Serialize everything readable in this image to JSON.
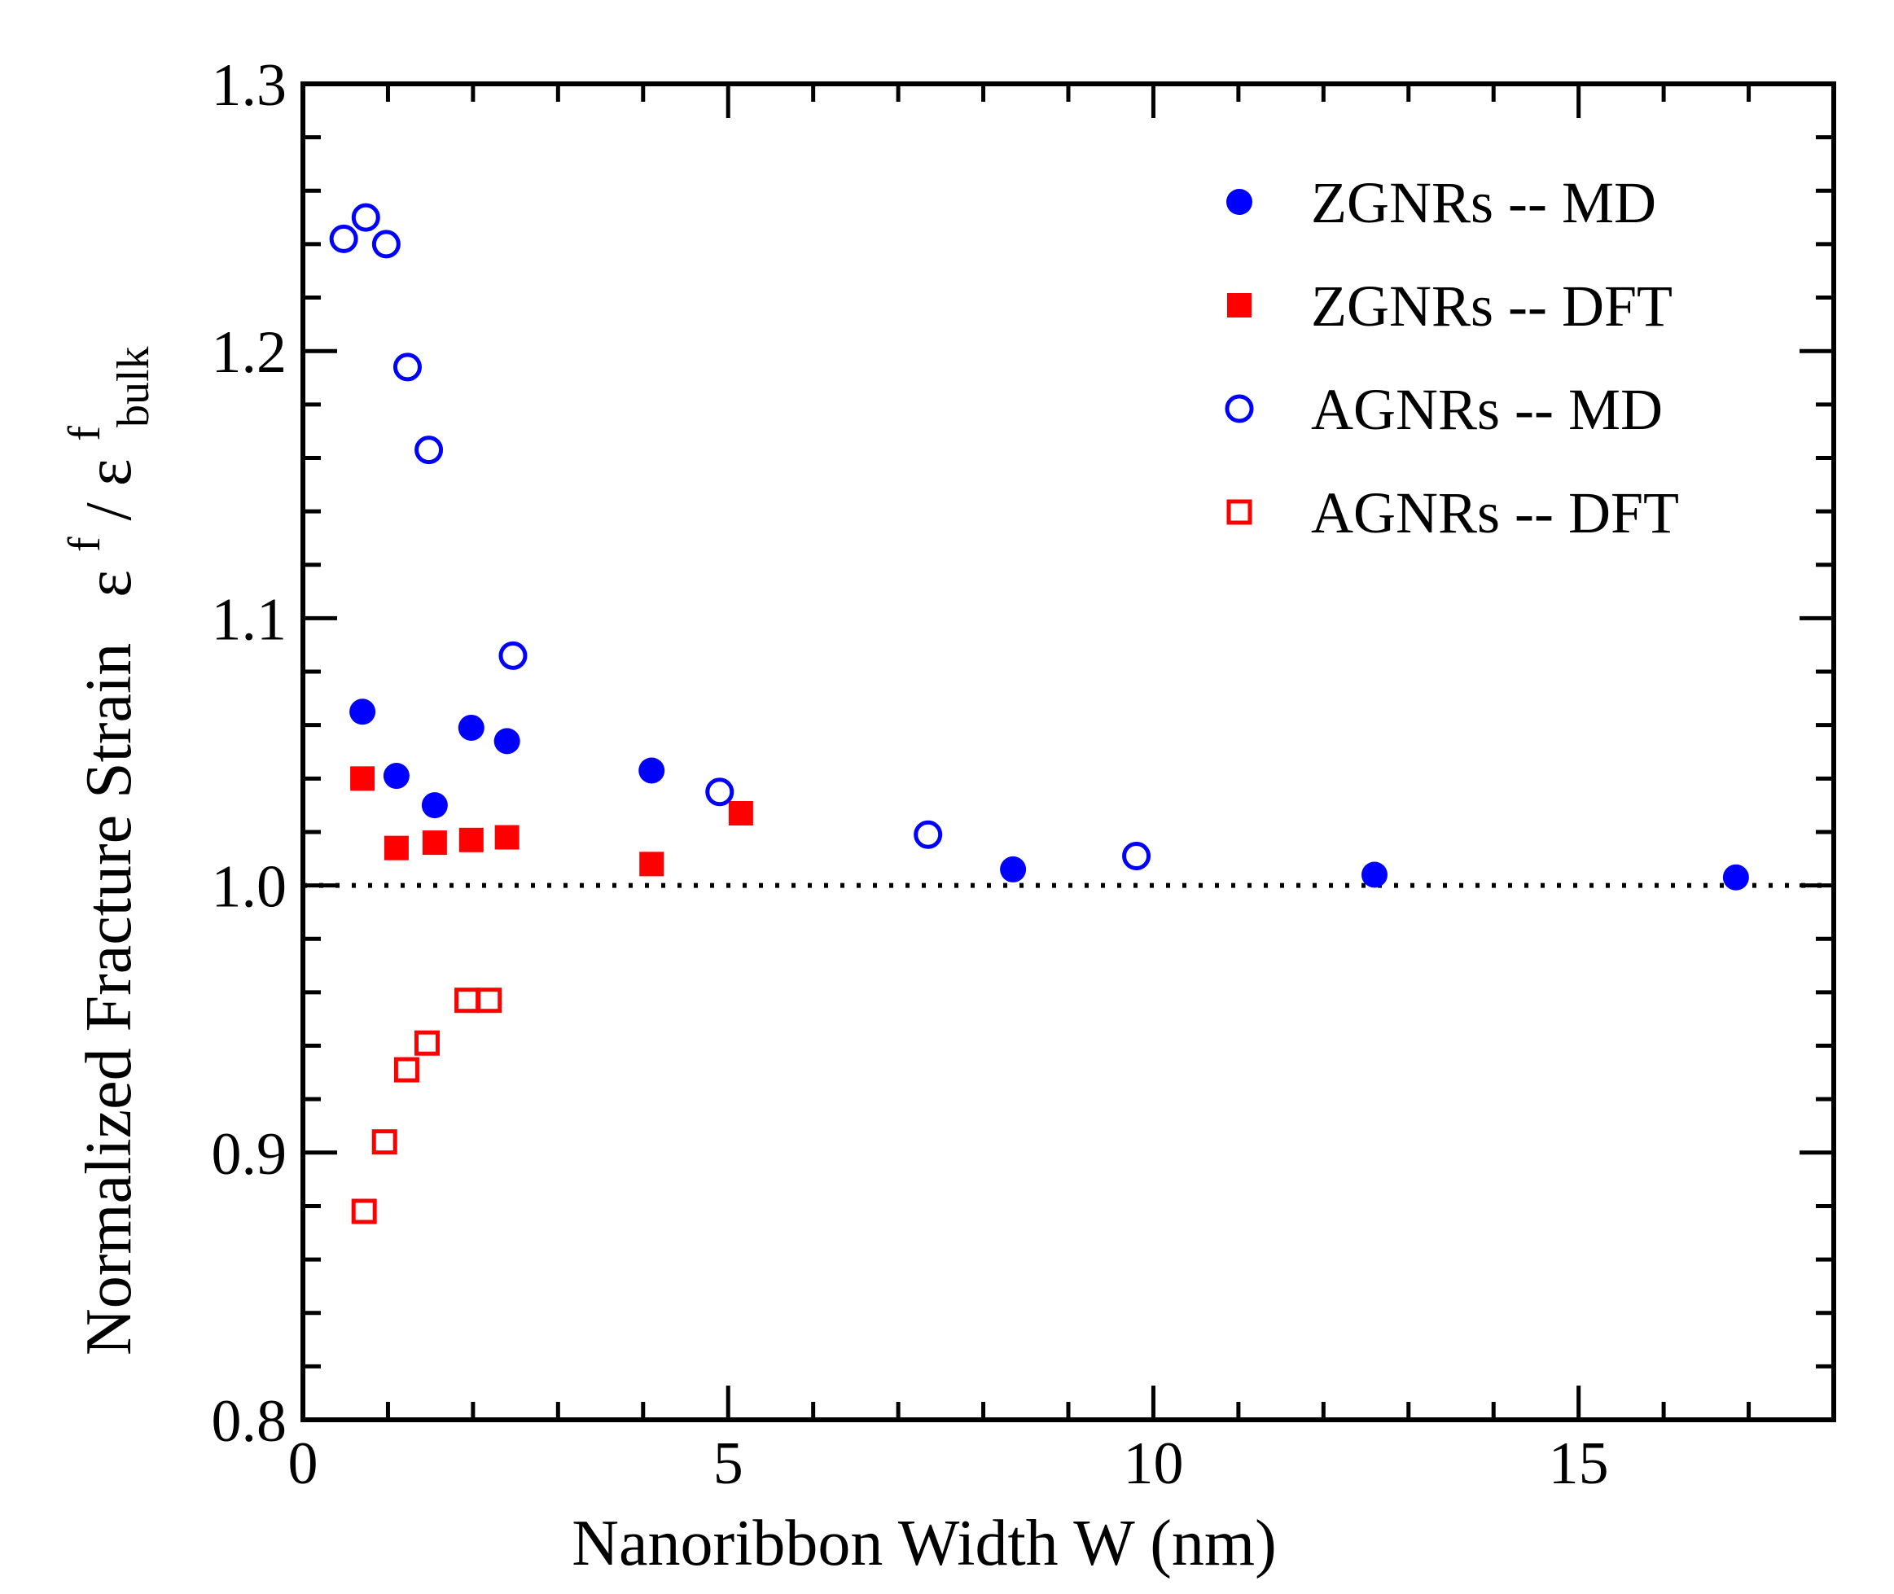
{
  "chart_data": {
    "type": "scatter",
    "title": "",
    "xlabel": "Nanoribbon Width  W (nm)",
    "ylabel": {
      "main": "Normalized Fracture Strain",
      "epsilon": "ε",
      "sup": "f",
      "slash": " / ",
      "epsilon_bulk": "ε",
      "sup_bulk": "f",
      "sub_bulk": "bulk"
    },
    "xlim": [
      0,
      18
    ],
    "ylim": [
      0.8,
      1.3
    ],
    "x_ticks": [
      0,
      5,
      10,
      15
    ],
    "x_tick_labels": [
      "0",
      "5",
      "10",
      "15"
    ],
    "y_ticks": [
      0.8,
      0.9,
      1.0,
      1.1,
      1.2,
      1.3
    ],
    "y_tick_labels": [
      "0.8",
      "0.9",
      "1.0",
      "1.1",
      "1.2",
      "1.3"
    ],
    "x_minor_step": 1,
    "y_minor_step": 0.02,
    "reference_line": {
      "y": 1.0,
      "style": "dotted"
    },
    "legend_position": "top-right",
    "series": [
      {
        "name": "ZGNRs -- MD",
        "marker": "circle-filled",
        "color": "#0000ff",
        "x": [
          0.7,
          1.1,
          1.55,
          1.98,
          2.4,
          4.1,
          8.35,
          12.6,
          16.85
        ],
        "y": [
          1.065,
          1.041,
          1.03,
          1.059,
          1.054,
          1.043,
          1.006,
          1.004,
          1.003
        ]
      },
      {
        "name": "ZGNRs -- DFT",
        "marker": "square-filled",
        "color": "#ff0000",
        "x": [
          0.7,
          1.1,
          1.55,
          1.98,
          2.4,
          4.1,
          5.15
        ],
        "y": [
          1.04,
          1.014,
          1.016,
          1.017,
          1.018,
          1.008,
          1.027
        ]
      },
      {
        "name": "AGNRs -- MD",
        "marker": "circle-open",
        "color": "#0000ff",
        "x": [
          0.48,
          0.74,
          0.98,
          1.23,
          1.48,
          2.47,
          4.9,
          7.35,
          9.8
        ],
        "y": [
          1.242,
          1.25,
          1.24,
          1.194,
          1.163,
          1.086,
          1.035,
          1.019,
          1.011
        ]
      },
      {
        "name": "AGNRs -- DFT",
        "marker": "square-open",
        "color": "#ff0000",
        "x": [
          0.72,
          0.96,
          1.22,
          1.46,
          1.93,
          2.19
        ],
        "y": [
          0.878,
          0.904,
          0.931,
          0.941,
          0.957,
          0.957
        ]
      }
    ]
  }
}
